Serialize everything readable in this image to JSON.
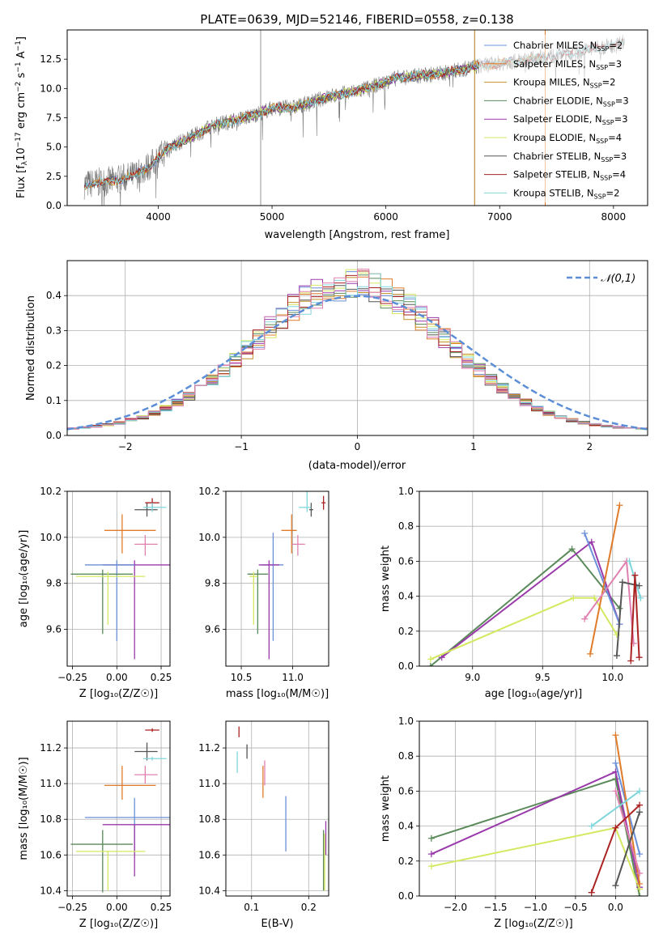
{
  "figure_title": "PLATE=0639, MJD=52146, FIBERID=0558, z=0.138",
  "colors": {
    "Chabrier MILES": "#6a8fd8",
    "Salpeter MILES": "#e07b2a",
    "Kroupa MILES": "#c4902a",
    "Chabrier ELODIE": "#5a8a5a",
    "Salpeter ELODIE": "#9a3aaa",
    "Kroupa ELODIE": "#d4e860",
    "Chabrier STELIB": "#555555",
    "Salpeter STELIB": "#aa2222",
    "Kroupa STELIB": "#7fd6dc",
    "pink": "#e080b0",
    "normal": "#5b8ed6"
  },
  "chart_data": [
    {
      "id": "spectrum",
      "type": "line",
      "xlabel": "wavelength [Angstrom, rest frame]",
      "ylabel": "Flux [fλ10⁻¹⁷ erg cm⁻² s⁻¹ A⁻¹]",
      "xlim": [
        3200,
        8300
      ],
      "ylim": [
        0,
        15.0
      ],
      "xticks": [
        4000,
        5000,
        6000,
        7000,
        8000
      ],
      "yticks": [
        0.0,
        2.5,
        5.0,
        7.5,
        10.0,
        12.5
      ],
      "grid": false,
      "legend_position": "top-right",
      "legend": [
        {
          "label": "Chabrier MILES, N",
          "sub": "SSP",
          "suffix": "=2"
        },
        {
          "label": "Salpeter MILES, N",
          "sub": "SSP",
          "suffix": "=3"
        },
        {
          "label": "Kroupa MILES, N",
          "sub": "SSP",
          "suffix": "=2"
        },
        {
          "label": "Chabrier ELODIE, N",
          "sub": "SSP",
          "suffix": "=3"
        },
        {
          "label": "Salpeter ELODIE, N",
          "sub": "SSP",
          "suffix": "=3"
        },
        {
          "label": "Kroupa ELODIE, N",
          "sub": "SSP",
          "suffix": "=4"
        },
        {
          "label": "Chabrier STELIB, N",
          "sub": "SSP",
          "suffix": "=3"
        },
        {
          "label": "Salpeter STELIB, N",
          "sub": "SSP",
          "suffix": "=4"
        },
        {
          "label": "Kroupa STELIB, N",
          "sub": "SSP",
          "suffix": "=2"
        }
      ],
      "continuum_knots": [
        [
          3350,
          1.8
        ],
        [
          3600,
          2.1
        ],
        [
          3800,
          2.6
        ],
        [
          3950,
          3.6
        ],
        [
          4100,
          5.0
        ],
        [
          4300,
          5.9
        ],
        [
          4500,
          6.9
        ],
        [
          4800,
          7.6
        ],
        [
          5000,
          8.3
        ],
        [
          5200,
          8.4
        ],
        [
          5500,
          9.3
        ],
        [
          5800,
          9.9
        ],
        [
          6100,
          10.9
        ],
        [
          6500,
          11.3
        ],
        [
          6800,
          11.9
        ],
        [
          7200,
          12.4
        ],
        [
          7600,
          13.0
        ],
        [
          8000,
          13.7
        ],
        [
          8100,
          14.0
        ]
      ],
      "spikes": [
        [
          4900,
          15.0,
          0
        ],
        [
          6780,
          0,
          15.0
        ],
        [
          7400,
          0,
          15.0
        ],
        [
          7050,
          15.0,
          15.0
        ],
        [
          7280,
          15.0,
          15.0
        ]
      ]
    },
    {
      "id": "residuals",
      "type": "histogram",
      "xlabel": "(data-model)/error",
      "ylabel": "Normed distribution",
      "xlim": [
        -2.5,
        2.5
      ],
      "ylim": [
        0,
        0.5
      ],
      "xticks": [
        -2,
        -1,
        0,
        1,
        2
      ],
      "yticks": [
        0.0,
        0.1,
        0.2,
        0.3,
        0.4
      ],
      "grid": true,
      "legend_label": "𝒩(0,1)",
      "legend_position": "top-right",
      "bin_width": 0.1
    },
    {
      "id": "age_vs_Z",
      "type": "errorbar",
      "xlabel": "Z [log₁₀(Z/Z☉)]",
      "ylabel": "age  [log₁₀(age/yr)]",
      "xlim": [
        -0.28,
        0.3
      ],
      "ylim": [
        9.44,
        10.2
      ],
      "xticks": [
        -0.25,
        0.0,
        0.25
      ],
      "yticks": [
        9.6,
        9.8,
        10.0,
        10.2
      ],
      "grid": true,
      "points": [
        {
          "c": "Chabrier STELIB",
          "x": 0.17,
          "y": 10.12,
          "xe": [
            0.07,
            0.06
          ],
          "ye": [
            0.03,
            0.03
          ]
        },
        {
          "c": "Salpeter STELIB",
          "x": 0.2,
          "y": 10.15,
          "xe": [
            0.04,
            0.04
          ],
          "ye": [
            0.02,
            0.02
          ]
        },
        {
          "c": "Kroupa STELIB",
          "x": 0.2,
          "y": 10.13,
          "xe": [
            0.05,
            0.08
          ],
          "ye": [
            0.02,
            0.02
          ]
        },
        {
          "c": "Salpeter MILES",
          "x": 0.03,
          "y": 10.03,
          "xe": [
            0.1,
            0.19
          ],
          "ye": [
            0.1,
            0.07
          ]
        },
        {
          "c": "pink",
          "x": 0.16,
          "y": 9.97,
          "xe": [
            0.06,
            0.07
          ],
          "ye": [
            0.05,
            0.04
          ]
        },
        {
          "c": "Salpeter ELODIE",
          "x": 0.1,
          "y": 9.88,
          "xe": [
            0.18,
            0.2
          ],
          "ye": [
            0.41,
            0.02
          ]
        },
        {
          "c": "Chabrier MILES",
          "x": 0.0,
          "y": 9.88,
          "xe": [
            0.18,
            0.1
          ],
          "ye": [
            0.33,
            0.02
          ]
        },
        {
          "c": "Chabrier ELODIE",
          "x": -0.08,
          "y": 9.84,
          "xe": [
            0.18,
            0.17
          ],
          "ye": [
            0.26,
            0.02
          ]
        },
        {
          "c": "Kroupa ELODIE",
          "x": -0.05,
          "y": 9.83,
          "xe": [
            0.18,
            0.21
          ],
          "ye": [
            0.21,
            0.02
          ]
        }
      ]
    },
    {
      "id": "age_vs_mass",
      "type": "errorbar",
      "xlabel": "mass [log₁₀(M/M☉)]",
      "ylabel": "",
      "xlim": [
        10.35,
        11.35
      ],
      "ylim": [
        9.44,
        10.2
      ],
      "xticks": [
        10.5,
        11.0
      ],
      "yticks": [
        9.6,
        9.8,
        10.0,
        10.2
      ],
      "grid": true,
      "points": [
        {
          "c": "Salpeter STELIB",
          "x": 11.3,
          "y": 10.15,
          "xe": [
            0.02,
            0.02
          ],
          "ye": [
            0.03,
            0.03
          ]
        },
        {
          "c": "Chabrier STELIB",
          "x": 11.18,
          "y": 10.12,
          "xe": [
            0.02,
            0.02
          ],
          "ye": [
            0.03,
            0.03
          ]
        },
        {
          "c": "Kroupa STELIB",
          "x": 11.14,
          "y": 10.13,
          "xe": [
            0.08,
            0.04
          ],
          "ye": [
            0.02,
            0.08
          ]
        },
        {
          "c": "Salpeter MILES",
          "x": 10.99,
          "y": 10.03,
          "xe": [
            0.1,
            0.05
          ],
          "ye": [
            0.1,
            0.07
          ]
        },
        {
          "c": "pink",
          "x": 11.05,
          "y": 9.97,
          "xe": [
            0.06,
            0.07
          ],
          "ye": [
            0.05,
            0.04
          ]
        },
        {
          "c": "Chabrier MILES",
          "x": 10.81,
          "y": 9.88,
          "xe": [
            0.11,
            0.1
          ],
          "ye": [
            0.33,
            0.14
          ]
        },
        {
          "c": "Salpeter ELODIE",
          "x": 10.77,
          "y": 9.88,
          "xe": [
            0.1,
            0.1
          ],
          "ye": [
            0.41,
            0.02
          ]
        },
        {
          "c": "Chabrier ELODIE",
          "x": 10.66,
          "y": 9.84,
          "xe": [
            0.1,
            0.1
          ],
          "ye": [
            0.26,
            0.02
          ]
        },
        {
          "c": "Kroupa ELODIE",
          "x": 10.62,
          "y": 9.83,
          "xe": [
            0.04,
            0.04
          ],
          "ye": [
            0.21,
            0.02
          ]
        }
      ]
    },
    {
      "id": "weight_vs_age",
      "type": "line",
      "xlabel": "age  [log₁₀(age/yr)]",
      "ylabel": "mass weight",
      "xlim": [
        8.62,
        10.25
      ],
      "ylim": [
        0,
        1.0
      ],
      "xticks": [
        9.0,
        9.5,
        10.0
      ],
      "yticks": [
        0.0,
        0.2,
        0.4,
        0.6,
        0.8,
        1.0
      ],
      "grid": true,
      "series": [
        {
          "c": "Chabrier ELODIE",
          "x": [
            8.7,
            9.71,
            10.05
          ],
          "y": [
            0.0,
            0.67,
            0.33
          ]
        },
        {
          "c": "Salpeter ELODIE",
          "x": [
            8.78,
            9.85,
            10.05
          ],
          "y": [
            0.05,
            0.71,
            0.24
          ]
        },
        {
          "c": "Kroupa ELODIE",
          "x": [
            8.7,
            9.72,
            9.87,
            10.03
          ],
          "y": [
            0.04,
            0.39,
            0.39,
            0.18
          ]
        },
        {
          "c": "Chabrier MILES",
          "x": [
            9.8,
            10.05
          ],
          "y": [
            0.76,
            0.24
          ]
        },
        {
          "c": "Salpeter MILES",
          "x": [
            9.84,
            10.05
          ],
          "y": [
            0.07,
            0.92
          ]
        },
        {
          "c": "pink",
          "x": [
            9.8,
            10.1,
            10.15
          ],
          "y": [
            0.27,
            0.6,
            0.13
          ]
        },
        {
          "c": "Kroupa STELIB",
          "x": [
            10.12,
            10.2
          ],
          "y": [
            0.6,
            0.39
          ]
        },
        {
          "c": "Chabrier STELIB",
          "x": [
            10.03,
            10.07,
            10.19
          ],
          "y": [
            0.06,
            0.48,
            0.46
          ]
        },
        {
          "c": "Salpeter STELIB",
          "x": [
            10.13,
            10.16,
            10.19
          ],
          "y": [
            0.03,
            0.52,
            0.05
          ]
        }
      ]
    },
    {
      "id": "mass_vs_Z",
      "type": "errorbar",
      "xlabel": "Z [log₁₀(Z/Z☉)]",
      "ylabel": "mass [log₁₀(M/M☉)]",
      "xlim": [
        -0.28,
        0.3
      ],
      "ylim": [
        10.37,
        11.35
      ],
      "xticks": [
        -0.25,
        0.0,
        0.25
      ],
      "yticks": [
        10.4,
        10.6,
        10.8,
        11.0,
        11.2
      ],
      "grid": true,
      "points": [
        {
          "c": "Salpeter STELIB",
          "x": 0.2,
          "y": 11.3,
          "xe": [
            0.04,
            0.04
          ],
          "ye": [
            0.01,
            0.01
          ]
        },
        {
          "c": "Chabrier STELIB",
          "x": 0.17,
          "y": 11.18,
          "xe": [
            0.07,
            0.06
          ],
          "ye": [
            0.05,
            0.05
          ]
        },
        {
          "c": "Kroupa STELIB",
          "x": 0.2,
          "y": 11.14,
          "xe": [
            0.05,
            0.08
          ],
          "ye": [
            0.01,
            0.01
          ]
        },
        {
          "c": "pink",
          "x": 0.16,
          "y": 11.05,
          "xe": [
            0.06,
            0.07
          ],
          "ye": [
            0.05,
            0.05
          ]
        },
        {
          "c": "Salpeter MILES",
          "x": 0.03,
          "y": 10.99,
          "xe": [
            0.1,
            0.19
          ],
          "ye": [
            0.08,
            0.11
          ]
        },
        {
          "c": "Chabrier MILES",
          "x": 0.1,
          "y": 10.81,
          "xe": [
            0.28,
            0.2
          ],
          "ye": [
            0.2,
            0.11
          ]
        },
        {
          "c": "Salpeter ELODIE",
          "x": 0.1,
          "y": 10.77,
          "xe": [
            0.18,
            0.2
          ],
          "ye": [
            0.29,
            0.0
          ]
        },
        {
          "c": "Chabrier ELODIE",
          "x": -0.08,
          "y": 10.66,
          "xe": [
            0.18,
            0.17
          ],
          "ye": [
            0.27,
            0.08
          ]
        },
        {
          "c": "Kroupa ELODIE",
          "x": -0.05,
          "y": 10.62,
          "xe": [
            0.18,
            0.21
          ],
          "ye": [
            0.22,
            0.0
          ]
        }
      ]
    },
    {
      "id": "mass_vs_ebv",
      "type": "errorbar",
      "xlabel": "E(B-V)",
      "ylabel": "",
      "xlim": [
        0.055,
        0.235
      ],
      "ylim": [
        10.37,
        11.35
      ],
      "xticks": [
        0.1,
        0.2
      ],
      "yticks": [
        10.4,
        10.6,
        10.8,
        11.0,
        11.2
      ],
      "grid": true,
      "points": [
        {
          "c": "Salpeter STELIB",
          "x": 0.078,
          "y": 11.29,
          "xe": [
            0,
            0
          ],
          "ye": [
            0.03,
            0.03
          ]
        },
        {
          "c": "Chabrier STELIB",
          "x": 0.092,
          "y": 11.18,
          "xe": [
            0,
            0
          ],
          "ye": [
            0.04,
            0.04
          ]
        },
        {
          "c": "Kroupa STELIB",
          "x": 0.075,
          "y": 11.12,
          "xe": [
            0,
            0
          ],
          "ye": [
            0.06,
            0.06
          ]
        },
        {
          "c": "pink",
          "x": 0.123,
          "y": 11.06,
          "xe": [
            0,
            0
          ],
          "ye": [
            0.07,
            0.07
          ]
        },
        {
          "c": "Salpeter MILES",
          "x": 0.12,
          "y": 11.0,
          "xe": [
            0,
            0
          ],
          "ye": [
            0.08,
            0.1
          ]
        },
        {
          "c": "Chabrier MILES",
          "x": 0.16,
          "y": 10.77,
          "xe": [
            0,
            0
          ],
          "ye": [
            0.15,
            0.16
          ]
        },
        {
          "c": "Salpeter ELODIE",
          "x": 0.23,
          "y": 10.69,
          "xe": [
            0,
            0
          ],
          "ye": [
            0.09,
            0.1
          ]
        },
        {
          "c": "Chabrier ELODIE",
          "x": 0.226,
          "y": 10.55,
          "xe": [
            0,
            0
          ],
          "ye": [
            0.15,
            0.19
          ]
        },
        {
          "c": "Kroupa ELODIE",
          "x": 0.228,
          "y": 10.5,
          "xe": [
            0,
            0
          ],
          "ye": [
            0.1,
            0.22
          ]
        }
      ]
    },
    {
      "id": "weight_vs_Z",
      "type": "line",
      "xlabel": "Z [log₁₀(Z/Z☉)]",
      "ylabel": "mass weight",
      "xlim": [
        -2.45,
        0.4
      ],
      "ylim": [
        0,
        1.0
      ],
      "xticks": [
        -2.0,
        -1.5,
        -1.0,
        -0.5,
        0.0
      ],
      "yticks": [
        0.0,
        0.2,
        0.4,
        0.6,
        0.8,
        1.0
      ],
      "grid": true,
      "series": [
        {
          "c": "Chabrier ELODIE",
          "x": [
            -2.3,
            0.0,
            0.3
          ],
          "y": [
            0.33,
            0.67,
            0.0
          ]
        },
        {
          "c": "Salpeter ELODIE",
          "x": [
            -2.3,
            0.0,
            0.3
          ],
          "y": [
            0.24,
            0.71,
            0.05
          ]
        },
        {
          "c": "Kroupa ELODIE",
          "x": [
            -2.3,
            0.0,
            0.3
          ],
          "y": [
            0.17,
            0.39,
            0.04
          ]
        },
        {
          "c": "Chabrier MILES",
          "x": [
            0.0,
            0.3
          ],
          "y": [
            0.76,
            0.24
          ]
        },
        {
          "c": "Salpeter MILES",
          "x": [
            0.0,
            0.3
          ],
          "y": [
            0.92,
            0.07
          ]
        },
        {
          "c": "pink",
          "x": [
            0.0,
            0.3
          ],
          "y": [
            0.6,
            0.13
          ]
        },
        {
          "c": "Kroupa STELIB",
          "x": [
            -0.3,
            0.3
          ],
          "y": [
            0.4,
            0.6
          ]
        },
        {
          "c": "Chabrier STELIB",
          "x": [
            0.0,
            0.3
          ],
          "y": [
            0.06,
            0.48
          ]
        },
        {
          "c": "Salpeter STELIB",
          "x": [
            -0.3,
            0.0,
            0.3
          ],
          "y": [
            0.02,
            0.39,
            0.52
          ]
        }
      ]
    }
  ]
}
